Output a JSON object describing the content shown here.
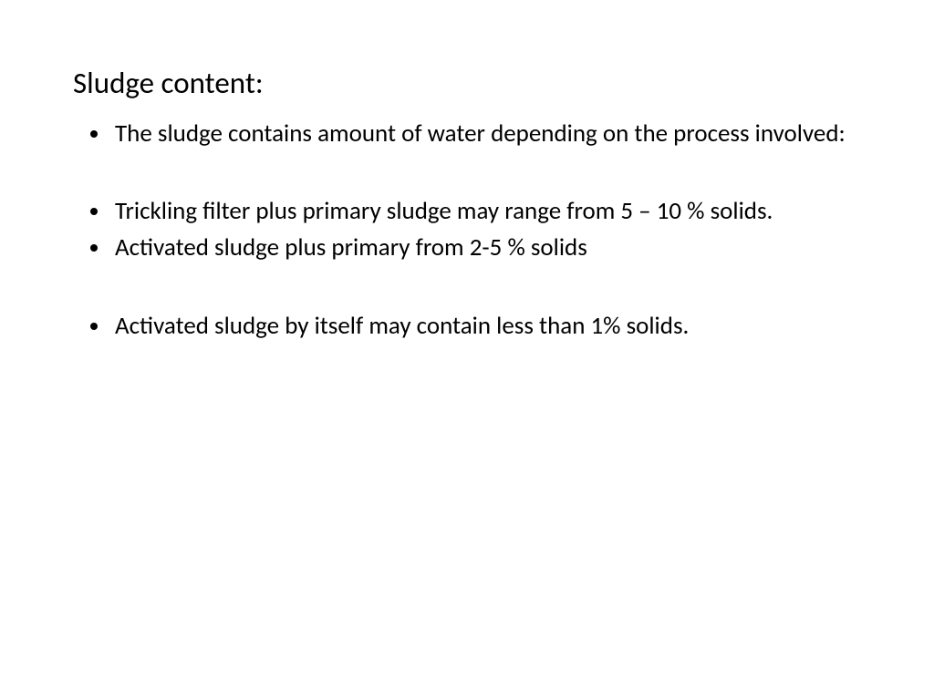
{
  "slide": {
    "title": "Sludge content:",
    "bullets": [
      "The sludge contains amount of water depending on the process involved:",
      "Trickling filter plus primary sludge may range from 5 – 10 % solids.",
      "Activated sludge plus primary from 2-5 % solids",
      "Activated sludge by itself may contain less than 1% solids."
    ],
    "text_color": "#000000",
    "background_color": "#ffffff",
    "title_fontsize": 33,
    "body_fontsize": 27
  }
}
